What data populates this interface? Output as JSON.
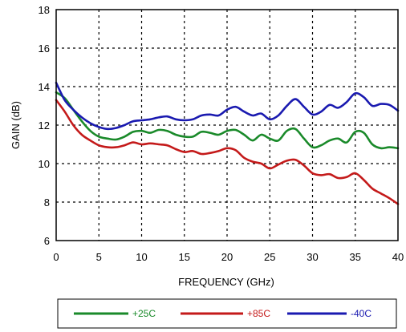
{
  "chart_data": {
    "type": "line",
    "title": "",
    "xlabel": "FREQUENCY (GHz)",
    "ylabel": "GAIN (dB)",
    "xlim": [
      0,
      40
    ],
    "ylim": [
      6,
      18
    ],
    "xticks": [
      0,
      5,
      10,
      15,
      20,
      25,
      30,
      35,
      40
    ],
    "yticks": [
      6,
      8,
      10,
      12,
      14,
      16,
      18
    ],
    "grid": true,
    "legend_position": "bottom",
    "series": [
      {
        "name": "+25C",
        "color": "#1a8a2a",
        "points": [
          [
            0,
            13.7
          ],
          [
            1,
            13.4
          ],
          [
            2,
            12.8
          ],
          [
            3,
            12.2
          ],
          [
            4,
            11.7
          ],
          [
            5,
            11.4
          ],
          [
            6,
            11.3
          ],
          [
            7,
            11.25
          ],
          [
            8,
            11.4
          ],
          [
            9,
            11.65
          ],
          [
            10,
            11.7
          ],
          [
            11,
            11.6
          ],
          [
            12,
            11.75
          ],
          [
            13,
            11.7
          ],
          [
            14,
            11.5
          ],
          [
            15,
            11.4
          ],
          [
            16,
            11.4
          ],
          [
            17,
            11.65
          ],
          [
            18,
            11.6
          ],
          [
            19,
            11.5
          ],
          [
            20,
            11.7
          ],
          [
            21,
            11.75
          ],
          [
            22,
            11.5
          ],
          [
            23,
            11.2
          ],
          [
            24,
            11.5
          ],
          [
            25,
            11.3
          ],
          [
            26,
            11.2
          ],
          [
            27,
            11.7
          ],
          [
            28,
            11.8
          ],
          [
            29,
            11.3
          ],
          [
            30,
            10.85
          ],
          [
            31,
            10.95
          ],
          [
            32,
            11.2
          ],
          [
            33,
            11.3
          ],
          [
            34,
            11.1
          ],
          [
            35,
            11.65
          ],
          [
            36,
            11.6
          ],
          [
            37,
            11.0
          ],
          [
            38,
            10.8
          ],
          [
            39,
            10.85
          ],
          [
            40,
            10.8
          ]
        ]
      },
      {
        "name": "+85C",
        "color": "#c41a1a",
        "points": [
          [
            0,
            13.3
          ],
          [
            1,
            12.7
          ],
          [
            2,
            12.0
          ],
          [
            3,
            11.5
          ],
          [
            4,
            11.2
          ],
          [
            5,
            10.95
          ],
          [
            6,
            10.85
          ],
          [
            7,
            10.85
          ],
          [
            8,
            10.95
          ],
          [
            9,
            11.1
          ],
          [
            10,
            11.0
          ],
          [
            11,
            11.05
          ],
          [
            12,
            11.0
          ],
          [
            13,
            10.95
          ],
          [
            14,
            10.75
          ],
          [
            15,
            10.6
          ],
          [
            16,
            10.65
          ],
          [
            17,
            10.5
          ],
          [
            18,
            10.55
          ],
          [
            19,
            10.65
          ],
          [
            20,
            10.8
          ],
          [
            21,
            10.7
          ],
          [
            22,
            10.3
          ],
          [
            23,
            10.1
          ],
          [
            24,
            10.0
          ],
          [
            25,
            9.75
          ],
          [
            26,
            9.95
          ],
          [
            27,
            10.15
          ],
          [
            28,
            10.2
          ],
          [
            29,
            9.9
          ],
          [
            30,
            9.5
          ],
          [
            31,
            9.4
          ],
          [
            32,
            9.45
          ],
          [
            33,
            9.25
          ],
          [
            34,
            9.3
          ],
          [
            35,
            9.5
          ],
          [
            36,
            9.15
          ],
          [
            37,
            8.7
          ],
          [
            38,
            8.45
          ],
          [
            39,
            8.2
          ],
          [
            40,
            7.9
          ]
        ]
      },
      {
        "name": "-40C",
        "color": "#1a1ab0",
        "points": [
          [
            0,
            14.2
          ],
          [
            1,
            13.3
          ],
          [
            2,
            12.8
          ],
          [
            3,
            12.4
          ],
          [
            4,
            12.1
          ],
          [
            5,
            11.9
          ],
          [
            6,
            11.8
          ],
          [
            7,
            11.85
          ],
          [
            8,
            12.0
          ],
          [
            9,
            12.2
          ],
          [
            10,
            12.25
          ],
          [
            11,
            12.3
          ],
          [
            12,
            12.4
          ],
          [
            13,
            12.45
          ],
          [
            14,
            12.3
          ],
          [
            15,
            12.25
          ],
          [
            16,
            12.3
          ],
          [
            17,
            12.5
          ],
          [
            18,
            12.55
          ],
          [
            19,
            12.5
          ],
          [
            20,
            12.8
          ],
          [
            21,
            12.95
          ],
          [
            22,
            12.7
          ],
          [
            23,
            12.5
          ],
          [
            24,
            12.6
          ],
          [
            25,
            12.3
          ],
          [
            26,
            12.5
          ],
          [
            27,
            13.0
          ],
          [
            28,
            13.35
          ],
          [
            29,
            12.95
          ],
          [
            30,
            12.55
          ],
          [
            31,
            12.7
          ],
          [
            32,
            13.05
          ],
          [
            33,
            12.9
          ],
          [
            34,
            13.2
          ],
          [
            35,
            13.65
          ],
          [
            36,
            13.45
          ],
          [
            37,
            13.0
          ],
          [
            38,
            13.1
          ],
          [
            39,
            13.05
          ],
          [
            40,
            12.75
          ]
        ]
      }
    ]
  }
}
